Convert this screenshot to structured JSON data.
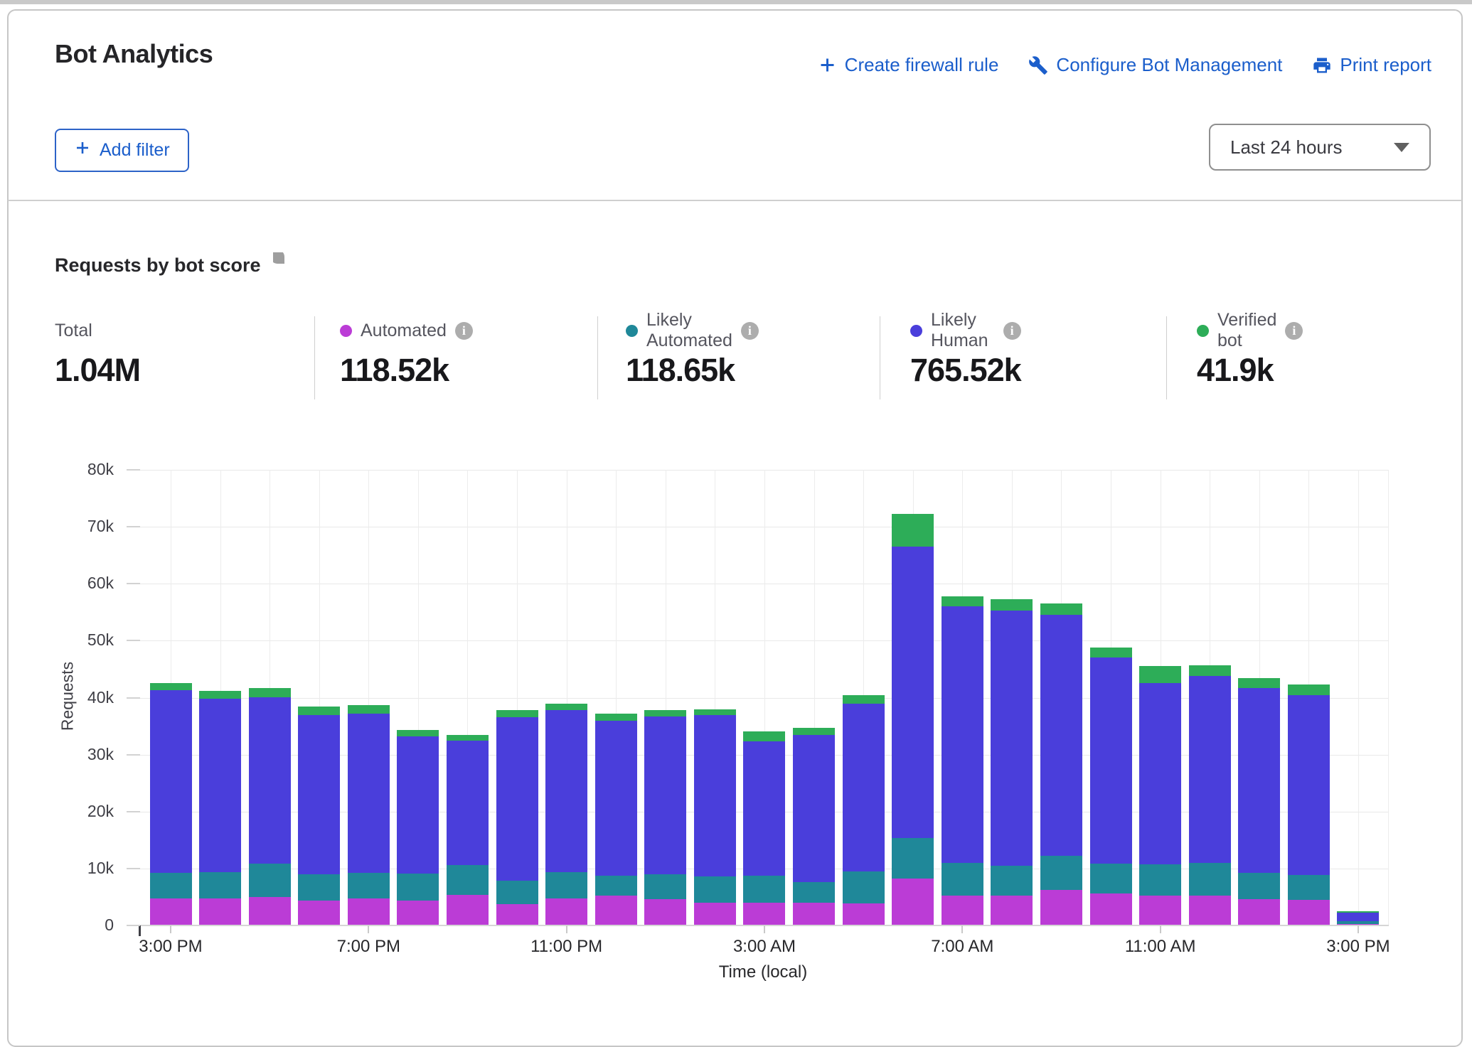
{
  "page": {
    "title": "Bot Analytics",
    "actions": {
      "create_firewall_rule": "Create firewall rule",
      "configure_bot_management": "Configure Bot Management",
      "print_report": "Print report"
    },
    "add_filter_label": "Add filter",
    "time_range_value": "Last 24 hours",
    "accent_blue": "#1b5ecb"
  },
  "section": {
    "title": "Requests by bot score"
  },
  "stats": [
    {
      "label": "Total",
      "value": "1.04M"
    },
    {
      "label": "Automated",
      "value": "118.52k",
      "color": "#bb3cd6"
    },
    {
      "label": "Likely Automated",
      "value": "118.65k",
      "color": "#1f8899"
    },
    {
      "label": "Likely Human",
      "value": "765.52k",
      "color": "#4a3edb"
    },
    {
      "label": "Verified bot",
      "value": "41.9k",
      "color": "#2dad58"
    }
  ],
  "chart_data": {
    "type": "bar",
    "stacked": true,
    "title": "Requests by bot score",
    "xlabel": "Time (local)",
    "ylabel": "Requests",
    "ylim": [
      0,
      80000
    ],
    "grid": true,
    "bar_interval": "1 hour",
    "ytick_labels": [
      "0",
      "10k",
      "20k",
      "30k",
      "40k",
      "50k",
      "60k",
      "70k",
      "80k"
    ],
    "xtick_labels": [
      "3:00 PM",
      "7:00 PM",
      "11:00 PM",
      "3:00 AM",
      "7:00 AM",
      "11:00 AM",
      "3:00 PM"
    ],
    "xticks_every_n_bars": 4,
    "legend_position": "stats-row-above-chart",
    "series": [
      {
        "name": "Automated",
        "color": "#bb3cd6",
        "values": [
          4700,
          4800,
          5000,
          4400,
          4700,
          4400,
          5400,
          3700,
          4700,
          5200,
          4600,
          4000,
          4000,
          4000,
          3900,
          8300,
          5300,
          5200,
          6200,
          5600,
          5300,
          5200,
          4600,
          4500,
          300
        ]
      },
      {
        "name": "Likely Automated",
        "color": "#1f8899",
        "values": [
          4500,
          4600,
          5900,
          4600,
          4600,
          4700,
          5200,
          4200,
          4700,
          3500,
          4400,
          4600,
          4800,
          3600,
          5600,
          7100,
          5700,
          5300,
          6000,
          5300,
          5400,
          5800,
          4600,
          4400,
          400
        ]
      },
      {
        "name": "Likely Human",
        "color": "#4a3edb",
        "values": [
          32100,
          30400,
          29200,
          27900,
          27900,
          24100,
          21800,
          28700,
          28400,
          27300,
          27700,
          28400,
          23500,
          25800,
          29500,
          51100,
          45000,
          44800,
          42400,
          36100,
          31800,
          32800,
          32500,
          31500,
          1600
        ]
      },
      {
        "name": "Verified bot",
        "color": "#2dad58",
        "values": [
          1300,
          1400,
          1600,
          1500,
          1500,
          1100,
          1100,
          1200,
          1200,
          1200,
          1100,
          1000,
          1800,
          1300,
          1500,
          5800,
          1800,
          2000,
          1900,
          1800,
          3000,
          1900,
          1700,
          1900,
          200
        ]
      }
    ]
  }
}
